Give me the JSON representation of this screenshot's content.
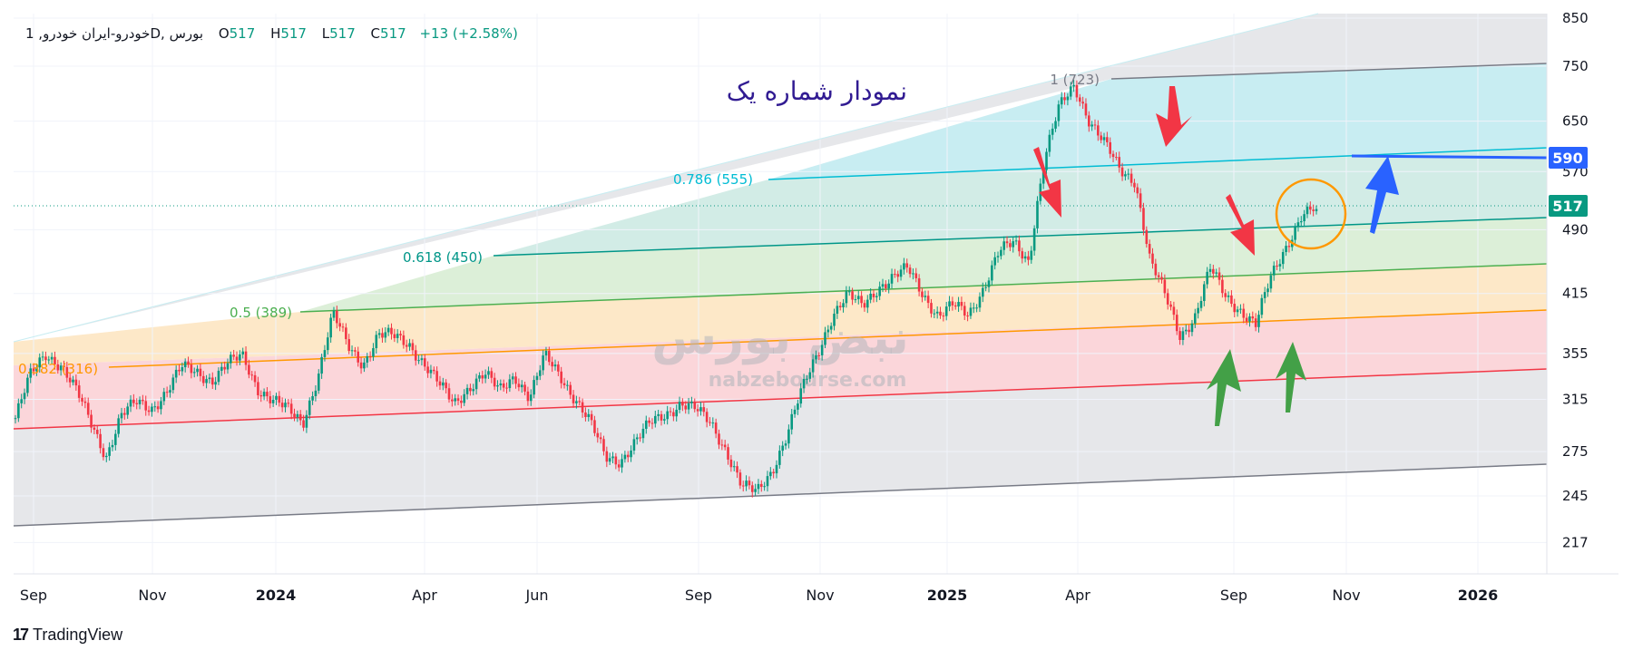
{
  "header": {
    "symbol": "1 ,خودرو-ایران خودرو",
    "interval": "D",
    "exchange": "بورس",
    "open_label": "O",
    "open": "517",
    "high_label": "H",
    "high": "517",
    "low_label": "L",
    "low": "517",
    "close_label": "C",
    "close": "517",
    "change": "+13 (+2.58%)"
  },
  "annotation_title": "نمودار شماره یک",
  "watermark": {
    "name": "نبض بورس",
    "url": "nabzebourse.com"
  },
  "branding": {
    "logo_mark": "17",
    "name": "TradingView"
  },
  "price_labels": [
    {
      "value": 590,
      "text": "590",
      "color": "#2962ff"
    },
    {
      "value": 517,
      "text": "517",
      "color": "#089981"
    }
  ],
  "fib_labels": [
    {
      "text": "1 (723)",
      "color": "#787b86"
    },
    {
      "text": "0.786 (555)",
      "color": "#00bcd4"
    },
    {
      "text": "0.618 (450)",
      "color": "#009688"
    },
    {
      "text": "0.5 (389)",
      "color": "#4caf50"
    },
    {
      "text": "0.382 (316)",
      "color": "#ff9800"
    }
  ],
  "colors": {
    "up": "#089981",
    "down": "#f23645",
    "gray_zone": "#e6e7ea",
    "cyan_zone": "#c8edf2",
    "teal_zone": "#d2ece6",
    "green_zone": "#dcefd8",
    "orange_zone": "#fde8c8",
    "red_zone": "#fbd6da",
    "arrow_red": "#f23645",
    "arrow_green": "#43a047",
    "arrow_blue": "#2962ff",
    "circle": "#ff9800"
  },
  "chart_data": {
    "type": "candlestick",
    "y_scale": "log",
    "ylim": [
      200,
      860
    ],
    "y_ticks": [
      "850",
      "750",
      "650",
      "570",
      "490",
      "415",
      "355",
      "315",
      "275",
      "245",
      "217"
    ],
    "x_labels": [
      {
        "text": "Sep",
        "bold": false
      },
      {
        "text": "Nov",
        "bold": false
      },
      {
        "text": "2024",
        "bold": true
      },
      {
        "text": "Apr",
        "bold": false
      },
      {
        "text": "Jun",
        "bold": false
      },
      {
        "text": "Sep",
        "bold": false
      },
      {
        "text": "Nov",
        "bold": false
      },
      {
        "text": "2025",
        "bold": true
      },
      {
        "text": "Apr",
        "bold": false
      },
      {
        "text": "Sep",
        "bold": false
      },
      {
        "text": "Nov",
        "bold": false
      },
      {
        "text": "2026",
        "bold": true
      }
    ],
    "last_close": 517,
    "close_series": [
      300,
      335,
      355,
      345,
      322,
      296,
      272,
      302,
      312,
      308,
      322,
      342,
      338,
      332,
      345,
      352,
      325,
      315,
      306,
      296,
      335,
      392,
      362,
      346,
      372,
      371,
      365,
      346,
      327,
      312,
      326,
      336,
      322,
      336,
      316,
      352,
      336,
      316,
      296,
      271,
      269,
      282,
      296,
      304,
      312,
      306,
      296,
      276,
      251,
      247,
      262,
      287,
      322,
      355,
      392,
      412,
      402,
      422,
      432,
      442,
      415,
      392,
      402,
      392,
      422,
      462,
      472,
      452,
      586,
      672,
      714,
      652,
      612,
      572,
      558,
      452,
      412,
      372,
      392,
      442,
      412,
      398,
      382,
      432,
      470,
      508,
      517
    ],
    "fib_levels": [
      {
        "level": "1",
        "price": 723
      },
      {
        "level": "0.786",
        "price": 555
      },
      {
        "level": "0.618",
        "price": 450
      },
      {
        "level": "0.5",
        "price": 389
      },
      {
        "level": "0.382",
        "price": 316
      }
    ]
  }
}
